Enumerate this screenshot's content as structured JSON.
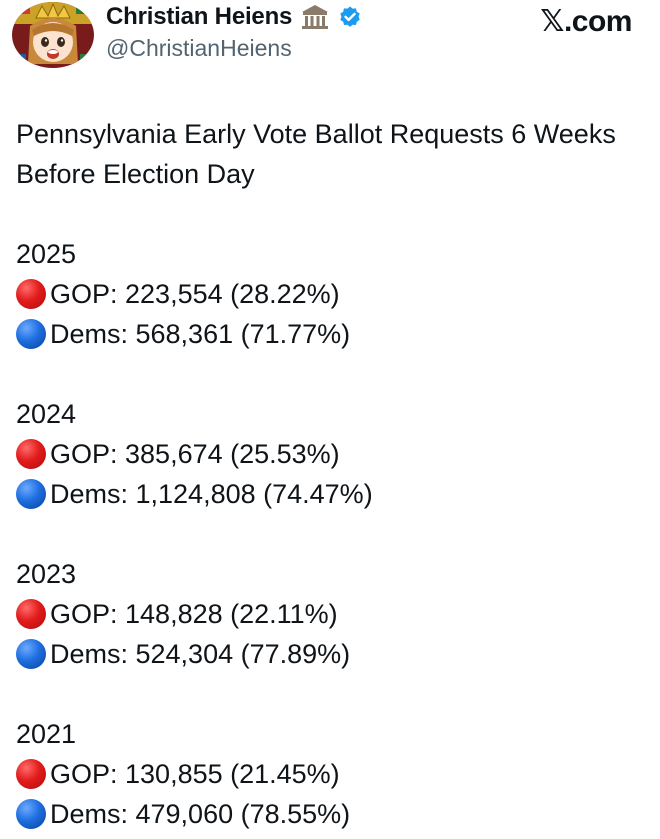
{
  "author": {
    "display_name": "Christian Heiens",
    "handle": "@ChristianHeiens"
  },
  "site": "𝕏.com",
  "post": {
    "title": "Pennsylvania Early Vote Ballot Requests 6 Weeks Before Election Day",
    "years": [
      {
        "year": "2025",
        "gop": "GOP: 223,554 (28.22%)",
        "dems": "Dems: 568,361 (71.77%)"
      },
      {
        "year": "2024",
        "gop": "GOP: 385,674 (25.53%)",
        "dems": "Dems: 1,124,808 (74.47%)"
      },
      {
        "year": "2023",
        "gop": "GOP: 148,828 (22.11%)",
        "dems": "Dems: 524,304 (77.89%)"
      },
      {
        "year": "2021",
        "gop": "GOP: 130,855 (21.45%)",
        "dems": "Dems: 479,060 (78.55%)"
      }
    ]
  },
  "colors": {
    "gop_dot": "#e31b1b",
    "dems_dot": "#1d6fe0",
    "verified": "#1d9bf0",
    "handle": "#536471"
  },
  "icons": {
    "avatar": "anime-avatar",
    "classical-building": "classical-building-icon",
    "verified": "verified-badge-icon",
    "red-circle": "red-circle-icon",
    "blue-circle": "blue-circle-icon"
  }
}
